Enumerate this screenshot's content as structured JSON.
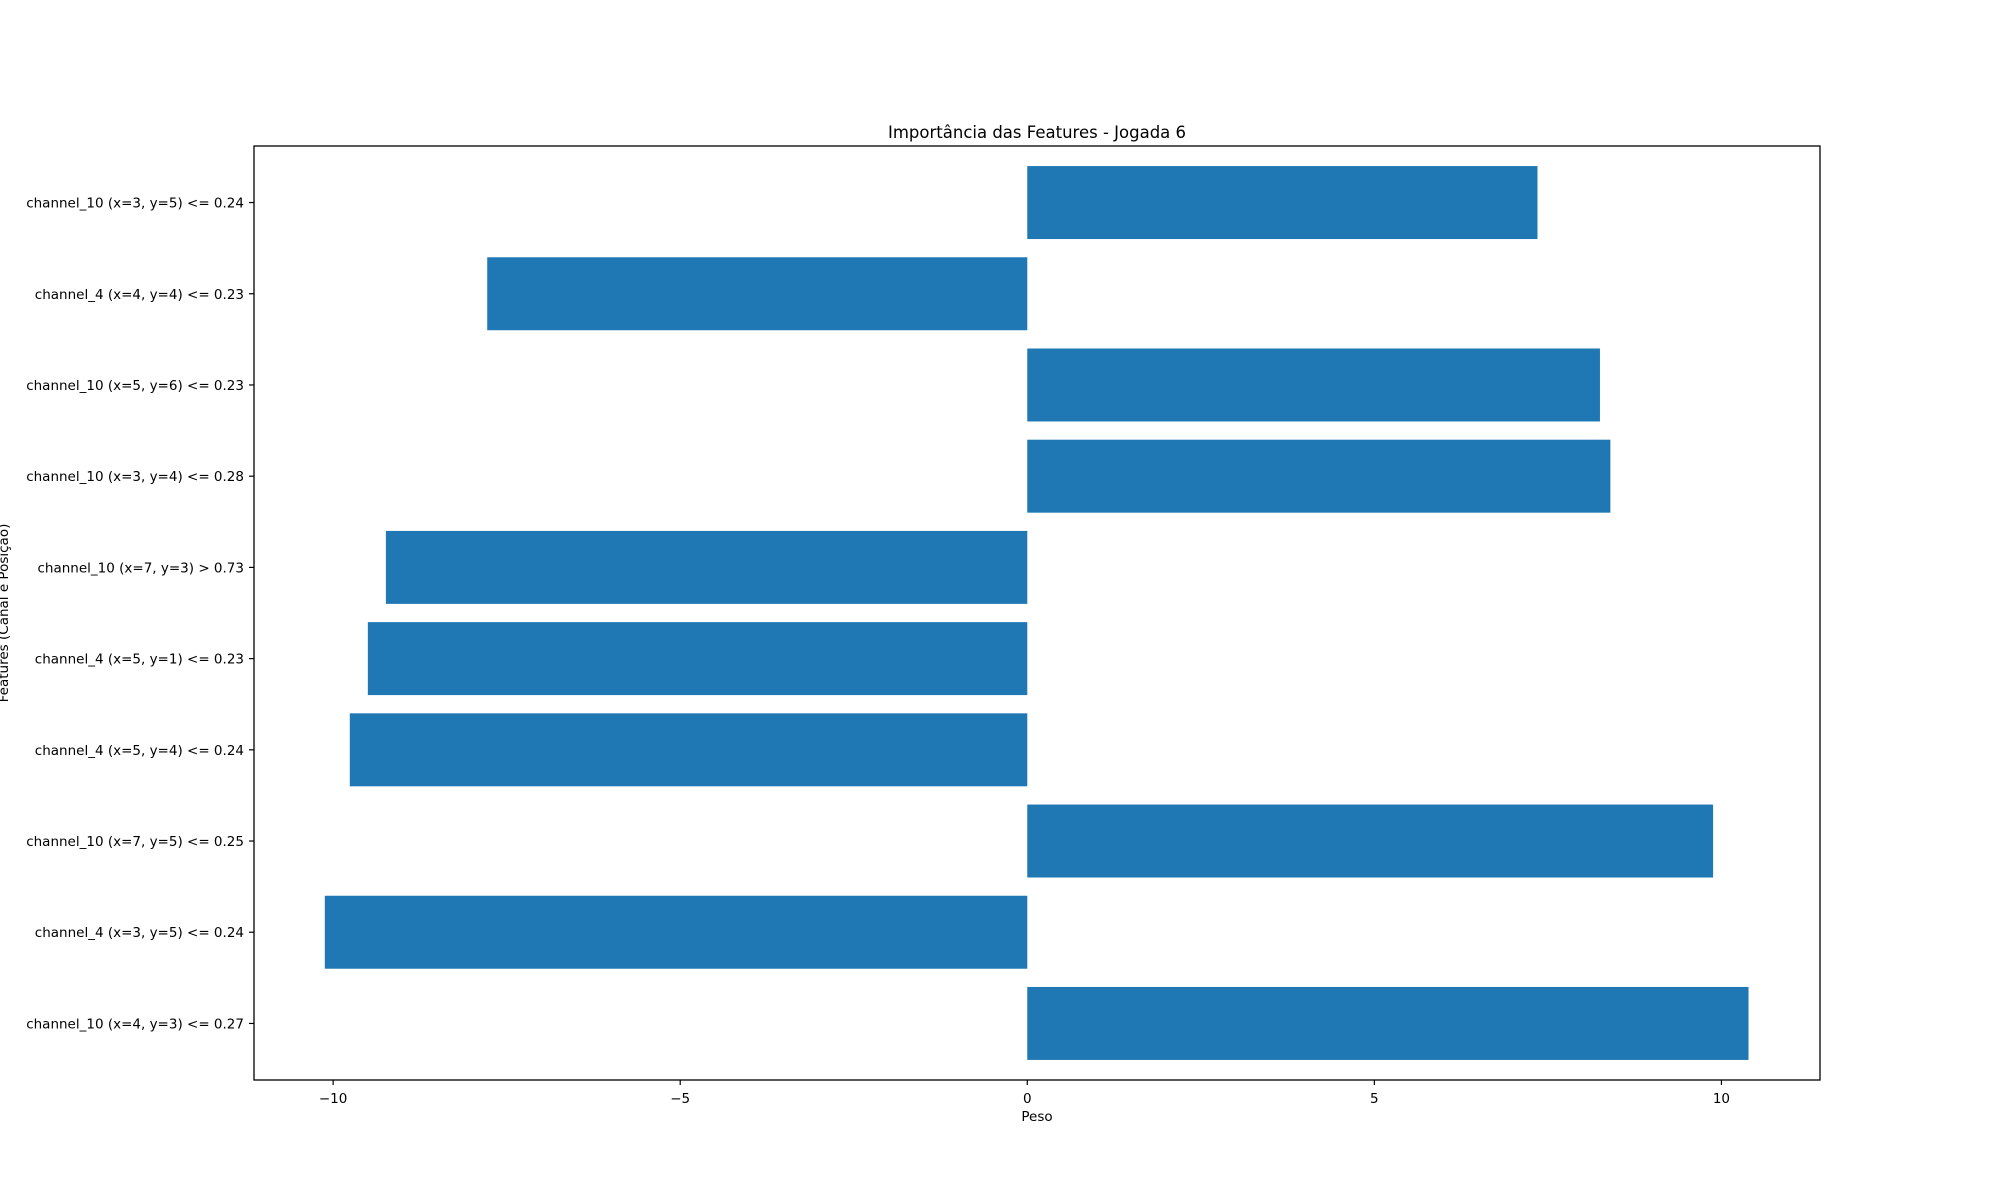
{
  "chart_data": {
    "type": "bar",
    "orientation": "horizontal",
    "title": "Importância das Features - Jogada 6",
    "xlabel": "Peso",
    "ylabel": "Features (Canal e Posição)",
    "xlim": [
      -11.14,
      11.42
    ],
    "xticks": [
      -10,
      -5,
      0,
      5,
      10
    ],
    "xtick_labels": [
      "−10",
      "−5",
      "0",
      "5",
      "10"
    ],
    "grid": false,
    "bar_color": "#1f77b4",
    "categories": [
      "channel_10 (x=3, y=5) <= 0.24",
      "channel_4 (x=4, y=4) <= 0.23",
      "channel_10 (x=5, y=6) <= 0.23",
      "channel_10 (x=3, y=4) <= 0.28",
      "channel_10 (x=7, y=3) > 0.73",
      "channel_4 (x=5, y=1) <= 0.23",
      "channel_4 (x=5, y=4) <= 0.24",
      "channel_10 (x=7, y=5) <= 0.25",
      "channel_4 (x=3, y=5) <= 0.24",
      "channel_10 (x=4, y=3) <= 0.27"
    ],
    "values": [
      7.35,
      -7.78,
      8.25,
      8.4,
      -9.24,
      -9.5,
      -9.76,
      9.88,
      -10.12,
      10.39
    ]
  }
}
